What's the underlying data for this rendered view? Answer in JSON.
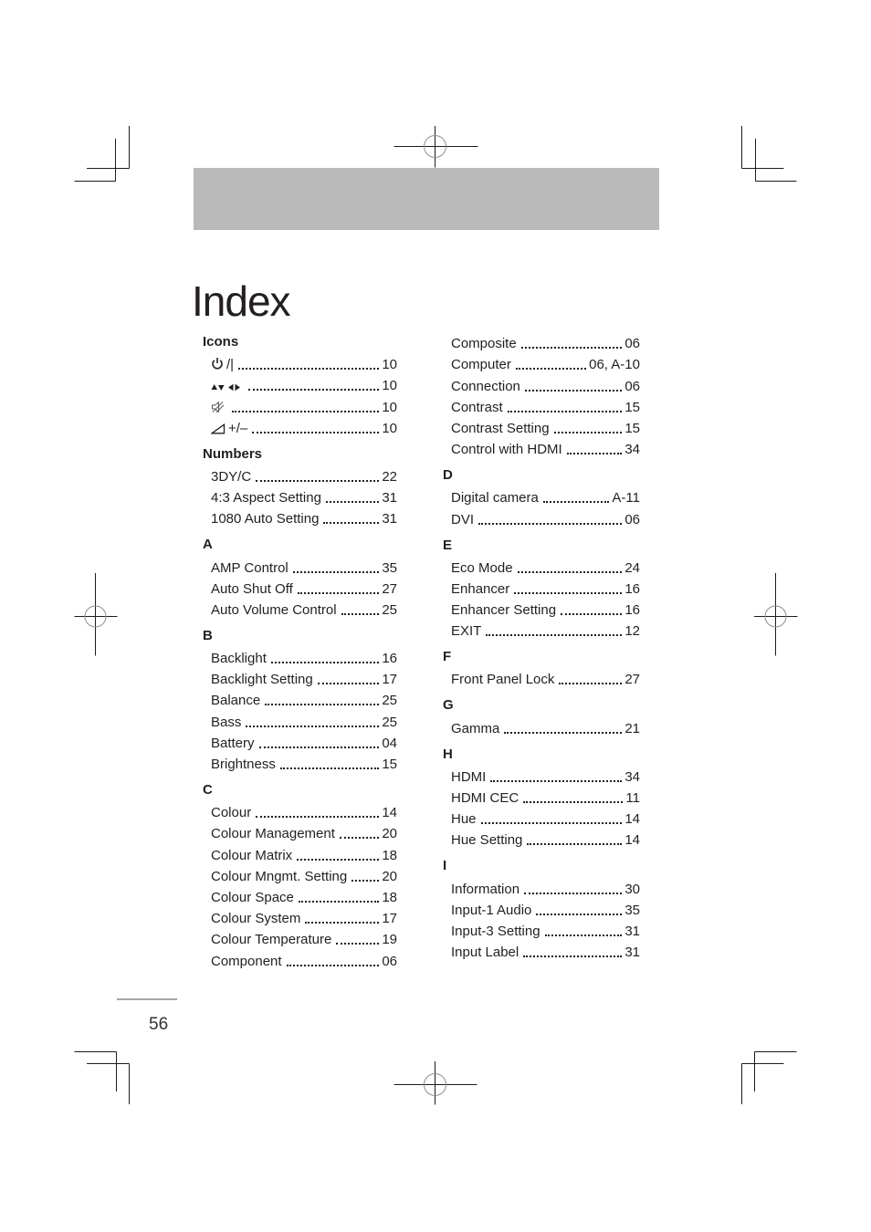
{
  "page": {
    "title": "Index",
    "page_number": "56"
  },
  "colors": {
    "header_bar": "#b9b9b9",
    "text": "#231f20",
    "footer_rule": "#a6a6a6"
  },
  "index": {
    "left_column": [
      {
        "heading": "Icons",
        "entries": [
          {
            "icon": "power-icon",
            "label": "/|",
            "page": "10"
          },
          {
            "icon": "nav-arrows-icon",
            "label": "",
            "page": "10"
          },
          {
            "icon": "mute-icon",
            "label": "",
            "page": "10"
          },
          {
            "icon": "volume-icon",
            "label": "+/–",
            "page": "10"
          }
        ]
      },
      {
        "heading": "Numbers",
        "entries": [
          {
            "label": "3DY/C",
            "page": "22"
          },
          {
            "label": "4:3 Aspect Setting",
            "page": "31"
          },
          {
            "label": "1080 Auto Setting",
            "page": "31"
          }
        ]
      },
      {
        "heading": "A",
        "entries": [
          {
            "label": "AMP Control",
            "page": "35"
          },
          {
            "label": "Auto Shut Off",
            "page": "27"
          },
          {
            "label": "Auto Volume Control",
            "page": "25"
          }
        ]
      },
      {
        "heading": "B",
        "entries": [
          {
            "label": "Backlight",
            "page": "16"
          },
          {
            "label": "Backlight Setting",
            "page": "17"
          },
          {
            "label": "Balance",
            "page": "25"
          },
          {
            "label": "Bass",
            "page": "25"
          },
          {
            "label": "Battery",
            "page": "04"
          },
          {
            "label": "Brightness",
            "page": "15"
          }
        ]
      },
      {
        "heading": "C",
        "entries": [
          {
            "label": "Colour",
            "page": "14"
          },
          {
            "label": "Colour Management",
            "page": "20"
          },
          {
            "label": "Colour Matrix",
            "page": "18"
          },
          {
            "label": "Colour Mngmt. Setting",
            "page": "20"
          },
          {
            "label": "Colour Space",
            "page": "18"
          },
          {
            "label": "Colour System",
            "page": "17"
          },
          {
            "label": "Colour Temperature",
            "page": "19"
          },
          {
            "label": "Component",
            "page": "06"
          }
        ]
      }
    ],
    "right_column": [
      {
        "heading": "",
        "entries": [
          {
            "label": "Composite",
            "page": "06"
          },
          {
            "label": "Computer",
            "page": "06, A-10"
          },
          {
            "label": "Connection",
            "page": "06"
          },
          {
            "label": "Contrast",
            "page": "15"
          },
          {
            "label": "Contrast Setting",
            "page": "15"
          },
          {
            "label": "Control with HDMI",
            "page": "34"
          }
        ]
      },
      {
        "heading": "D",
        "entries": [
          {
            "label": "Digital camera",
            "page": "A-11"
          },
          {
            "label": "DVI",
            "page": "06"
          }
        ]
      },
      {
        "heading": "E",
        "entries": [
          {
            "label": "Eco Mode",
            "page": "24"
          },
          {
            "label": "Enhancer",
            "page": "16"
          },
          {
            "label": "Enhancer Setting",
            "page": "16"
          },
          {
            "label": "EXIT",
            "page": "12"
          }
        ]
      },
      {
        "heading": "F",
        "entries": [
          {
            "label": "Front Panel Lock",
            "page": "27"
          }
        ]
      },
      {
        "heading": "G",
        "entries": [
          {
            "label": "Gamma",
            "page": "21"
          }
        ]
      },
      {
        "heading": "H",
        "entries": [
          {
            "label": "HDMI",
            "page": "34"
          },
          {
            "label": "HDMI CEC",
            "page": "11"
          },
          {
            "label": "Hue",
            "page": "14"
          },
          {
            "label": "Hue Setting",
            "page": "14"
          }
        ]
      },
      {
        "heading": "I",
        "entries": [
          {
            "label": "Information",
            "page": "30"
          },
          {
            "label": "Input-1 Audio",
            "page": "35"
          },
          {
            "label": "Input-3 Setting",
            "page": "31"
          },
          {
            "label": "Input Label",
            "page": "31"
          }
        ]
      }
    ]
  }
}
